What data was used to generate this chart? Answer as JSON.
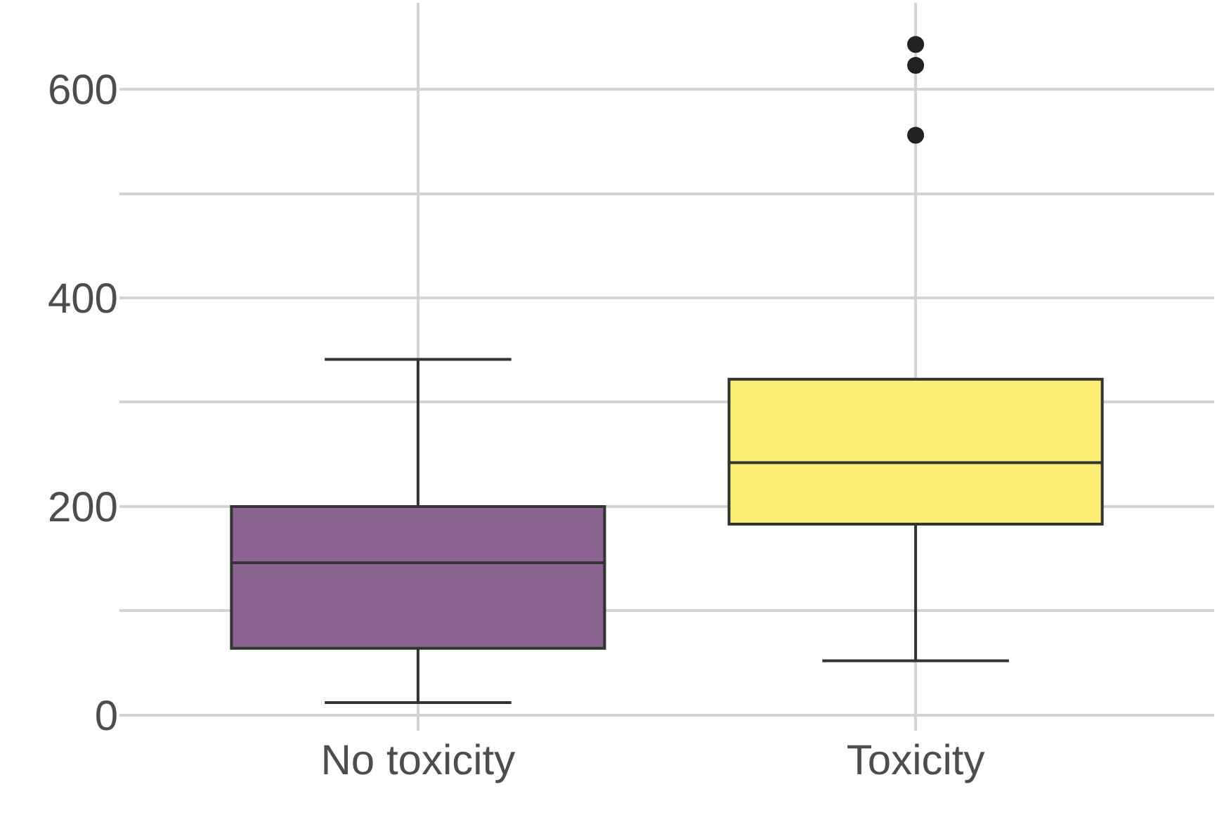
{
  "chart_data": {
    "type": "box",
    "categories": [
      "No toxicity",
      "Toxicity"
    ],
    "colors": [
      "#8b6391",
      "#fbed75"
    ],
    "boxes": [
      {
        "low": 12,
        "q1": 64,
        "median": 146,
        "q3": 200,
        "high": 341
      },
      {
        "low": 52,
        "q1": 183,
        "median": 242,
        "q3": 322,
        "high": 322,
        "outliers": [
          556,
          623,
          643
        ]
      }
    ],
    "ylim": [
      -15,
      683
    ],
    "yticks": [
      0,
      {
        "value": 100,
        "label": null
      },
      200,
      {
        "value": 300,
        "label": null
      },
      400,
      {
        "value": 500,
        "label": null
      },
      600
    ],
    "grid": true
  }
}
